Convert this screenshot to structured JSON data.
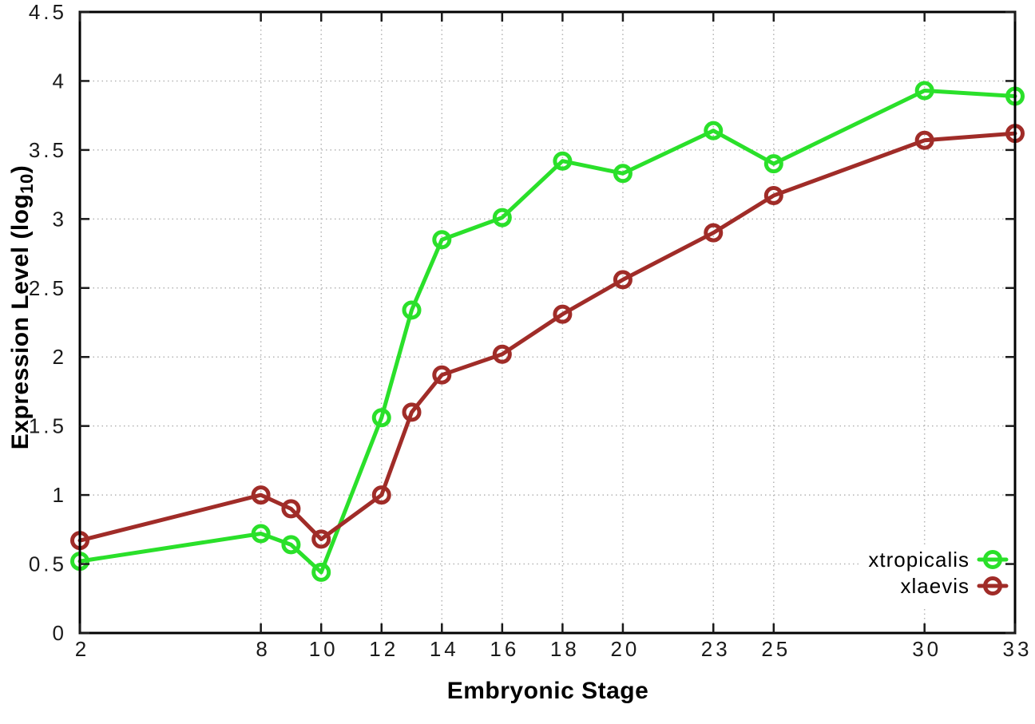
{
  "figure": {
    "background": "#ffffff",
    "border_color": "#000000",
    "grid_color": "#b4b4b4",
    "tick_color": "#1a1a1a",
    "tick_label_color": "#1a1a1a"
  },
  "chart_data": {
    "type": "line",
    "title": "",
    "xlabel": "Embryonic Stage",
    "ylabel_parts": {
      "main": "Expression Level (log",
      "sub": "10",
      "end": ")"
    },
    "xlim": [
      2,
      33
    ],
    "ylim": [
      0,
      4.5
    ],
    "xticks": [
      2,
      8,
      10,
      12,
      14,
      16,
      18,
      20,
      23,
      25,
      30,
      33
    ],
    "xtick_labels": [
      "2",
      "8",
      "10",
      "12",
      "14",
      "16",
      "18",
      "20",
      "23",
      "25",
      "30",
      "33"
    ],
    "yticks": [
      0,
      0.5,
      1,
      1.5,
      2,
      2.5,
      3,
      3.5,
      4,
      4.5
    ],
    "ytick_labels": [
      "0",
      "0.5",
      "1",
      "1.5",
      "2",
      "2.5",
      "3",
      "3.5",
      "4",
      "4.5"
    ],
    "grid": true,
    "legend_position": "bottom-right",
    "marker": "open-circle",
    "x": [
      2,
      8,
      9,
      10,
      12,
      13,
      14,
      16,
      18,
      20,
      23,
      25,
      30,
      33
    ],
    "series": [
      {
        "name": "xtropicalis",
        "color": "#2ae02a",
        "values": [
          0.52,
          0.72,
          0.64,
          0.44,
          1.56,
          2.34,
          2.85,
          3.01,
          3.42,
          3.33,
          3.64,
          3.4,
          3.93,
          3.89
        ]
      },
      {
        "name": "xlaevis",
        "color": "#a02c28",
        "values": [
          0.67,
          1.0,
          0.9,
          0.68,
          1.0,
          1.6,
          1.87,
          2.02,
          2.31,
          2.56,
          2.9,
          3.17,
          3.57,
          3.62
        ]
      }
    ]
  }
}
